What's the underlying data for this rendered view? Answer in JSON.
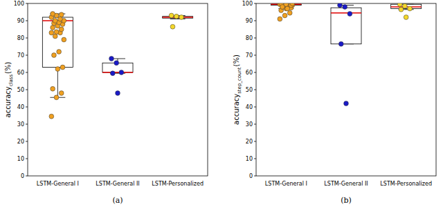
{
  "chart_data": [
    {
      "type": "box",
      "title": "(a)",
      "y_label": "accuracy",
      "y_label_subscript": "class",
      "y_label_suffix": "(%)",
      "categories": [
        "LSTM-General I",
        "LSTM-General II",
        "LSTM-Personalized"
      ],
      "colors": [
        "#f0a020",
        "#1a1ac8",
        "#f5d82a"
      ],
      "ylim": [
        0,
        100
      ],
      "yticks": [
        0,
        10,
        20,
        30,
        40,
        50,
        60,
        70,
        80,
        90,
        100
      ],
      "boxes": [
        {
          "whisker_low": 45.5,
          "q1": 63,
          "median": 90,
          "q3": 92,
          "whisker_high": 94
        },
        {
          "whisker_low": 59.5,
          "q1": 60,
          "median": 60,
          "q3": 65.5,
          "whisker_high": 68
        },
        {
          "whisker_low": 91,
          "q1": 91.5,
          "median": 92,
          "q3": 92.5,
          "whisker_high": 93
        }
      ],
      "points": [
        [
          34.5,
          45.5,
          48,
          50.5,
          62,
          63,
          70,
          72,
          79,
          81,
          83,
          83,
          83.5,
          85,
          86,
          87,
          88,
          88.5,
          89,
          90,
          90,
          91,
          92,
          93,
          93.5,
          94
        ],
        [
          68,
          65.5,
          60,
          59.5,
          48
        ],
        [
          93,
          92.5,
          92,
          86.5
        ]
      ]
    },
    {
      "type": "box",
      "title": "(b)",
      "y_label": "accuracy",
      "y_label_subscript": "step_count",
      "y_label_suffix": "(%)",
      "categories": [
        "LSTM-General I",
        "LSTM-General II",
        "LSTM-Personalized"
      ],
      "colors": [
        "#f0a020",
        "#1a1ac8",
        "#f5d82a"
      ],
      "ylim": [
        0,
        100
      ],
      "yticks": [
        0,
        10,
        20,
        30,
        40,
        50,
        60,
        70,
        80,
        90,
        100
      ],
      "boxes": [
        {
          "whisker_low": 97,
          "q1": 99,
          "median": 99.5,
          "q3": 99.5,
          "whisker_high": 100
        },
        {
          "whisker_low": 76.5,
          "q1": 76.5,
          "median": 94.5,
          "q3": 97.5,
          "whisker_high": 99
        },
        {
          "whisker_low": 96.5,
          "q1": 97,
          "median": 98,
          "q3": 99.5,
          "whisker_high": 99.5
        }
      ],
      "points": [
        [
          91,
          93,
          94.5,
          96,
          97,
          97.5,
          98,
          98.5,
          99,
          99,
          99.5,
          99.5,
          100,
          100,
          100,
          99.5,
          99,
          98,
          97,
          100
        ],
        [
          99,
          98,
          94,
          76.5,
          42
        ],
        [
          99.5,
          98.5,
          97,
          96.5,
          92
        ]
      ]
    }
  ]
}
